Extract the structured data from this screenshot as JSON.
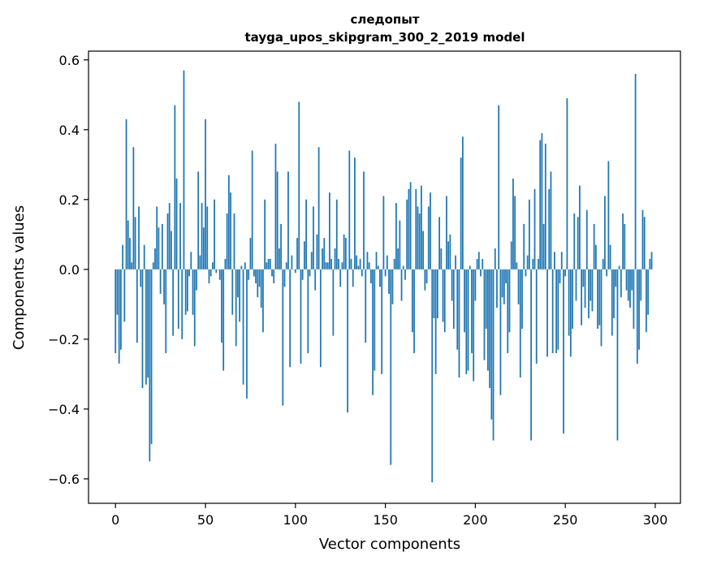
{
  "chart_data": {
    "type": "bar",
    "title": "следопыт",
    "subtitle": "tayga_upos_skipgram_300_2_2019 model",
    "xlabel": "Vector components",
    "ylabel": "Components values",
    "xlim": [
      -15,
      314
    ],
    "ylim": [
      -0.67,
      0.625
    ],
    "xticks": [
      0,
      50,
      100,
      150,
      200,
      250,
      300
    ],
    "yticks": [
      -0.6,
      -0.4,
      -0.2,
      0.0,
      0.2,
      0.4,
      0.6
    ],
    "ytick_labels": [
      "−0.6",
      "−0.4",
      "−0.2",
      "0.0",
      "0.2",
      "0.4",
      "0.6"
    ],
    "bar_color": "#1f77b4",
    "grid": false,
    "legend": "none",
    "values": [
      -0.24,
      -0.13,
      -0.27,
      -0.23,
      0.07,
      -0.15,
      0.43,
      0.14,
      0.09,
      0.02,
      0.35,
      0.15,
      -0.21,
      0.18,
      -0.05,
      -0.34,
      0.07,
      -0.33,
      -0.31,
      -0.55,
      -0.5,
      0.02,
      0.06,
      0.18,
      0.12,
      -0.07,
      0.13,
      -0.1,
      -0.24,
      0.16,
      0.19,
      0.11,
      -0.19,
      0.47,
      0.26,
      -0.17,
      0.19,
      -0.2,
      0.57,
      -0.13,
      -0.12,
      -0.02,
      0.05,
      -0.13,
      -0.22,
      -0.06,
      0.28,
      0.04,
      0.19,
      0.12,
      0.43,
      0.18,
      -0.04,
      -0.02,
      0.02,
      0.2,
      -0.01,
      0.0,
      -0.03,
      -0.21,
      -0.29,
      0.03,
      0.16,
      0.27,
      0.22,
      -0.13,
      0.16,
      -0.22,
      -0.08,
      -0.15,
      0.01,
      -0.33,
      0.02,
      -0.37,
      -0.03,
      0.09,
      0.34,
      -0.02,
      -0.04,
      -0.08,
      -0.05,
      -0.11,
      -0.18,
      0.2,
      0.02,
      0.03,
      0.03,
      -0.02,
      -0.04,
      0.36,
      0.28,
      0.06,
      0.13,
      -0.39,
      -0.05,
      0.02,
      0.28,
      -0.28,
      0.04,
      0.0,
      -0.01,
      0.09,
      0.48,
      -0.27,
      -0.03,
      0.08,
      0.2,
      -0.24,
      -0.02,
      0.05,
      0.18,
      -0.06,
      0.1,
      0.35,
      -0.28,
      0.06,
      0.09,
      0.02,
      0.02,
      0.22,
      0.03,
      -0.19,
      0.06,
      0.2,
      0.03,
      -0.05,
      0.02,
      0.1,
      0.09,
      -0.41,
      0.34,
      0.03,
      -0.05,
      0.32,
      0.04,
      0.01,
      0.03,
      -0.02,
      0.28,
      -0.21,
      0.05,
      0.02,
      -0.04,
      -0.36,
      -0.29,
      0.05,
      0.01,
      -0.05,
      -0.3,
      0.21,
      -0.02,
      0.04,
      -0.07,
      -0.56,
      -0.1,
      0.03,
      0.19,
      0.06,
      0.14,
      -0.09,
      0.01,
      -0.03,
      0.2,
      0.23,
      0.25,
      -0.18,
      -0.24,
      0.23,
      0.18,
      0.16,
      0.24,
      0.11,
      -0.06,
      -0.04,
      0.18,
      0.22,
      -0.61,
      -0.14,
      -0.3,
      -0.14,
      0.15,
      0.06,
      -0.15,
      -0.18,
      0.21,
      0.08,
      0.1,
      -0.09,
      -0.17,
      0.04,
      -0.23,
      -0.31,
      0.32,
      0.38,
      -0.18,
      -0.3,
      -0.29,
      0.01,
      -0.24,
      -0.32,
      -0.09,
      0.03,
      0.05,
      -0.02,
      0.03,
      -0.26,
      -0.17,
      -0.29,
      -0.34,
      -0.43,
      -0.49,
      0.06,
      -0.11,
      0.47,
      -0.36,
      -0.08,
      -0.1,
      -0.04,
      -0.24,
      -0.18,
      0.08,
      0.26,
      0.21,
      0.02,
      -0.1,
      -0.31,
      -0.17,
      0.13,
      -0.02,
      0.04,
      0.2,
      -0.49,
      0.03,
      0.23,
      -0.27,
      0.03,
      0.37,
      0.39,
      0.13,
      0.36,
      -0.25,
      0.23,
      0.28,
      -0.24,
      0.05,
      -0.24,
      -0.23,
      -0.04,
      0.05,
      -0.47,
      -0.02,
      0.49,
      -0.19,
      -0.25,
      -0.17,
      0.16,
      -0.09,
      0.15,
      0.24,
      -0.16,
      -0.05,
      -0.11,
      0.17,
      -0.14,
      -0.09,
      -0.12,
      0.13,
      0.07,
      -0.17,
      -0.16,
      -0.22,
      0.03,
      0.21,
      -0.02,
      0.31,
      0.07,
      -0.19,
      -0.14,
      -0.05,
      -0.49,
      0.01,
      -0.08,
      0.16,
      0.13,
      -0.06,
      -0.09,
      -0.11,
      -0.06,
      -0.17,
      0.56,
      -0.27,
      -0.23,
      -0.09,
      0.17,
      0.15,
      -0.18,
      -0.13,
      0.03,
      0.05
    ]
  }
}
